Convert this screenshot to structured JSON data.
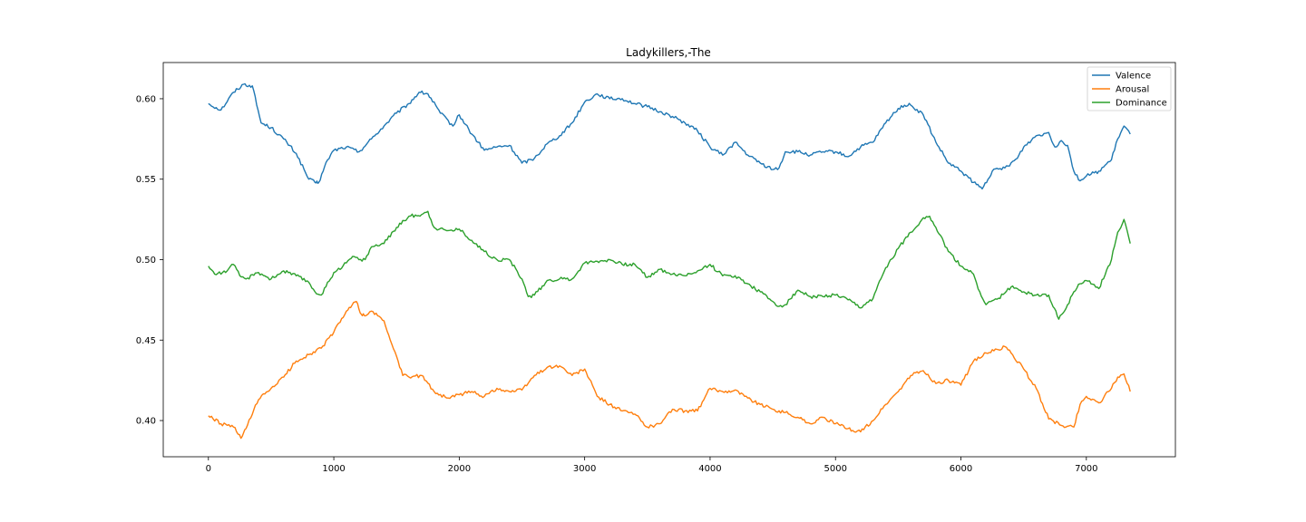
{
  "chart_data": {
    "type": "line",
    "title": "Ladykillers,-The",
    "xlabel": "",
    "ylabel": "",
    "xlim": [
      -360,
      7710
    ],
    "ylim": [
      0.3775,
      0.6225
    ],
    "xticks": [
      0,
      1000,
      2000,
      3000,
      4000,
      5000,
      6000,
      7000
    ],
    "xtick_labels": [
      "0",
      "1000",
      "2000",
      "3000",
      "4000",
      "5000",
      "6000",
      "7000"
    ],
    "yticks": [
      0.4,
      0.45,
      0.5,
      0.55,
      0.6
    ],
    "ytick_labels": [
      "0.40",
      "0.45",
      "0.50",
      "0.55",
      "0.60"
    ],
    "grid": false,
    "legend_position": "top-right",
    "series": [
      {
        "name": "Valence",
        "color": "#1f77b4",
        "x": [
          0,
          100,
          200,
          280,
          350,
          420,
          500,
          600,
          700,
          800,
          850,
          880,
          950,
          1000,
          1100,
          1200,
          1300,
          1400,
          1500,
          1600,
          1680,
          1750,
          1850,
          1950,
          2000,
          2100,
          2200,
          2300,
          2400,
          2500,
          2600,
          2700,
          2800,
          2900,
          3000,
          3100,
          3200,
          3300,
          3400,
          3500,
          3600,
          3700,
          3800,
          3900,
          4000,
          4100,
          4200,
          4300,
          4400,
          4500,
          4550,
          4600,
          4700,
          4800,
          4900,
          5000,
          5100,
          5200,
          5300,
          5400,
          5500,
          5550,
          5600,
          5700,
          5800,
          5900,
          6000,
          6100,
          6170,
          6250,
          6350,
          6450,
          6500,
          6600,
          6700,
          6750,
          6800,
          6850,
          6900,
          6950,
          7000,
          7100,
          7200,
          7250,
          7300,
          7350
        ],
        "values": [
          0.597,
          0.593,
          0.604,
          0.609,
          0.608,
          0.585,
          0.582,
          0.575,
          0.566,
          0.55,
          0.548,
          0.548,
          0.562,
          0.568,
          0.57,
          0.567,
          0.575,
          0.583,
          0.591,
          0.597,
          0.604,
          0.603,
          0.591,
          0.583,
          0.59,
          0.578,
          0.568,
          0.57,
          0.571,
          0.56,
          0.563,
          0.572,
          0.577,
          0.585,
          0.598,
          0.603,
          0.6,
          0.6,
          0.597,
          0.595,
          0.592,
          0.589,
          0.585,
          0.58,
          0.57,
          0.565,
          0.573,
          0.565,
          0.56,
          0.556,
          0.557,
          0.567,
          0.567,
          0.565,
          0.567,
          0.567,
          0.564,
          0.57,
          0.573,
          0.585,
          0.594,
          0.596,
          0.596,
          0.59,
          0.573,
          0.56,
          0.555,
          0.548,
          0.544,
          0.555,
          0.557,
          0.563,
          0.57,
          0.577,
          0.579,
          0.57,
          0.574,
          0.571,
          0.555,
          0.549,
          0.552,
          0.555,
          0.562,
          0.575,
          0.583,
          0.578
        ]
      },
      {
        "name": "Arousal",
        "color": "#ff7f0e",
        "x": [
          0,
          100,
          200,
          260,
          300,
          400,
          500,
          600,
          700,
          800,
          900,
          1000,
          1100,
          1180,
          1220,
          1250,
          1300,
          1400,
          1450,
          1500,
          1550,
          1600,
          1700,
          1800,
          1900,
          2000,
          2100,
          2200,
          2300,
          2400,
          2500,
          2600,
          2700,
          2800,
          2900,
          3000,
          3100,
          3200,
          3300,
          3400,
          3500,
          3600,
          3700,
          3800,
          3900,
          4000,
          4100,
          4200,
          4300,
          4400,
          4500,
          4600,
          4700,
          4800,
          4900,
          5000,
          5100,
          5200,
          5300,
          5400,
          5500,
          5600,
          5700,
          5800,
          5900,
          6000,
          6100,
          6200,
          6300,
          6350,
          6400,
          6500,
          6600,
          6700,
          6800,
          6900,
          6950,
          7000,
          7100,
          7200,
          7250,
          7300,
          7350
        ],
        "values": [
          0.403,
          0.398,
          0.396,
          0.389,
          0.395,
          0.413,
          0.42,
          0.427,
          0.437,
          0.441,
          0.445,
          0.455,
          0.468,
          0.474,
          0.466,
          0.465,
          0.468,
          0.462,
          0.45,
          0.44,
          0.428,
          0.427,
          0.428,
          0.418,
          0.414,
          0.416,
          0.418,
          0.415,
          0.42,
          0.418,
          0.419,
          0.428,
          0.433,
          0.434,
          0.428,
          0.432,
          0.415,
          0.41,
          0.406,
          0.404,
          0.396,
          0.398,
          0.407,
          0.406,
          0.406,
          0.42,
          0.418,
          0.419,
          0.414,
          0.41,
          0.407,
          0.405,
          0.402,
          0.398,
          0.402,
          0.398,
          0.395,
          0.393,
          0.4,
          0.41,
          0.418,
          0.428,
          0.431,
          0.423,
          0.425,
          0.422,
          0.437,
          0.442,
          0.444,
          0.446,
          0.442,
          0.432,
          0.42,
          0.401,
          0.397,
          0.396,
          0.41,
          0.415,
          0.411,
          0.42,
          0.427,
          0.429,
          0.418
        ]
      },
      {
        "name": "Dominance",
        "color": "#2ca02c",
        "x": [
          0,
          50,
          150,
          200,
          250,
          300,
          400,
          500,
          600,
          700,
          800,
          850,
          900,
          1000,
          1100,
          1150,
          1200,
          1250,
          1300,
          1400,
          1500,
          1600,
          1700,
          1750,
          1800,
          1900,
          2000,
          2100,
          2200,
          2300,
          2400,
          2500,
          2550,
          2600,
          2700,
          2800,
          2900,
          3000,
          3100,
          3200,
          3300,
          3400,
          3500,
          3600,
          3700,
          3800,
          3900,
          4000,
          4100,
          4200,
          4300,
          4400,
          4500,
          4550,
          4600,
          4700,
          4800,
          4900,
          5000,
          5100,
          5200,
          5300,
          5400,
          5500,
          5600,
          5700,
          5750,
          5800,
          5900,
          6000,
          6100,
          6150,
          6200,
          6300,
          6400,
          6500,
          6600,
          6700,
          6780,
          6850,
          6900,
          6950,
          7000,
          7100,
          7200,
          7250,
          7300,
          7350
        ],
        "values": [
          0.496,
          0.491,
          0.493,
          0.497,
          0.49,
          0.488,
          0.492,
          0.488,
          0.493,
          0.49,
          0.486,
          0.48,
          0.478,
          0.492,
          0.498,
          0.502,
          0.5,
          0.5,
          0.508,
          0.51,
          0.52,
          0.527,
          0.528,
          0.53,
          0.52,
          0.518,
          0.519,
          0.512,
          0.505,
          0.5,
          0.5,
          0.488,
          0.477,
          0.478,
          0.487,
          0.488,
          0.488,
          0.498,
          0.499,
          0.5,
          0.497,
          0.497,
          0.489,
          0.494,
          0.491,
          0.49,
          0.493,
          0.497,
          0.49,
          0.49,
          0.485,
          0.48,
          0.474,
          0.471,
          0.472,
          0.481,
          0.477,
          0.477,
          0.478,
          0.475,
          0.47,
          0.476,
          0.495,
          0.507,
          0.517,
          0.526,
          0.527,
          0.52,
          0.505,
          0.496,
          0.491,
          0.48,
          0.472,
          0.476,
          0.483,
          0.48,
          0.478,
          0.478,
          0.463,
          0.472,
          0.48,
          0.485,
          0.487,
          0.482,
          0.5,
          0.517,
          0.525,
          0.51
        ]
      }
    ]
  }
}
